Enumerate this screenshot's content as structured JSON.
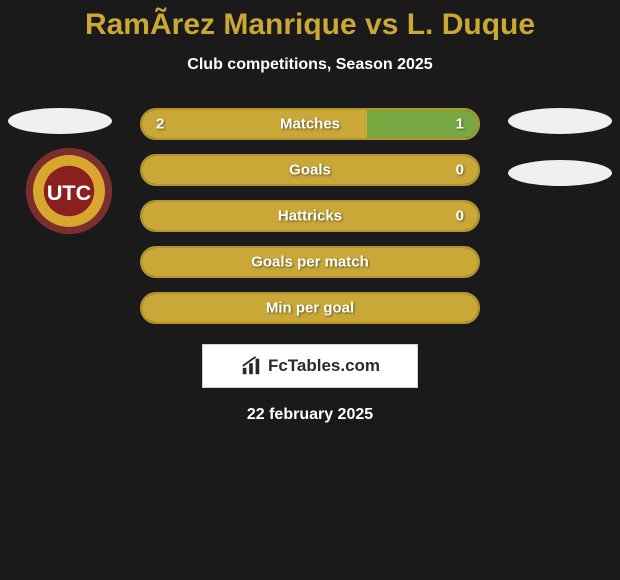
{
  "header": {
    "title": "RamÃ­rez Manrique vs L. Duque",
    "subtitle": "Club competitions, Season 2025"
  },
  "colors": {
    "accent": "#c9a838",
    "accent_border": "#b39530",
    "highlight_fill": "#79a843",
    "background": "#1a1a1a",
    "text_white": "#ffffff",
    "ellipse": "#f0f0f0",
    "badge_outer": "#7b2e2e",
    "badge_inner": "#d9a62e",
    "badge_deep": "#8a1f1f"
  },
  "stats": {
    "rows": [
      {
        "label": "Matches",
        "left_val": "2",
        "right_val": "1",
        "left_pct": 67,
        "right_highlight": true
      },
      {
        "label": "Goals",
        "left_val": "",
        "right_val": "0",
        "left_pct": 100,
        "right_highlight": false
      },
      {
        "label": "Hattricks",
        "left_val": "",
        "right_val": "0",
        "left_pct": 100,
        "right_highlight": false
      },
      {
        "label": "Goals per match",
        "left_val": "",
        "right_val": "",
        "left_pct": 100,
        "right_highlight": false
      },
      {
        "label": "Min per goal",
        "left_val": "",
        "right_val": "",
        "left_pct": 97,
        "right_highlight": false
      }
    ]
  },
  "branding": {
    "text": "FcTables.com"
  },
  "footer": {
    "date": "22 february 2025"
  },
  "team_badge": {
    "text": "UTC"
  }
}
